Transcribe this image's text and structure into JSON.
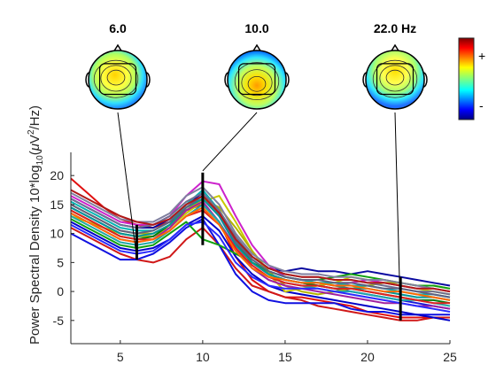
{
  "chart_data": {
    "type": "line",
    "title": "",
    "xlabel": "",
    "ylabel": {
      "prefix": "Power Spectral Density 10*log",
      "sub": "10",
      "mid": "(",
      "mu": "μ",
      "unit": "V",
      "sup": "2",
      "suffix": "/Hz)"
    },
    "xlim": [
      2,
      25
    ],
    "ylim": [
      -9,
      24
    ],
    "xticks": [
      5,
      10,
      15,
      20,
      25
    ],
    "yticks": [
      -5,
      0,
      5,
      10,
      15,
      20
    ],
    "grid": false,
    "x": [
      2,
      3,
      4,
      5,
      6,
      7,
      8,
      9,
      10,
      11,
      12,
      13,
      14,
      15,
      16,
      17,
      18,
      19,
      20,
      21,
      22,
      23,
      24,
      25
    ],
    "channels": [
      {
        "color": "#e01010",
        "values": [
          19.5,
          17,
          14.5,
          12.5,
          11.5,
          11,
          12,
          14,
          15,
          12,
          6,
          2,
          0,
          -1,
          -1,
          -1.5,
          -2,
          -2.5,
          -3.5,
          -4,
          -4.5,
          -4.5,
          -4.5,
          -4.5
        ]
      },
      {
        "color": "#d01818",
        "values": [
          11,
          9.5,
          8,
          6.5,
          5.5,
          5,
          6,
          9,
          11,
          8,
          4,
          1,
          0,
          -1,
          -1.5,
          -2.5,
          -3,
          -3.5,
          -4,
          -4.5,
          -5,
          -5,
          -4.5,
          -4.5
        ]
      },
      {
        "color": "#1010e0",
        "values": [
          10,
          8.5,
          7,
          5.5,
          5.5,
          6.5,
          8.5,
          11,
          12.5,
          8,
          3,
          0,
          -1.5,
          -2,
          -2,
          -2,
          -2,
          -3,
          -3.5,
          -3.5,
          -4,
          -4,
          -4,
          -4
        ]
      },
      {
        "color": "#0000c8",
        "values": [
          12,
          10.5,
          9,
          7.5,
          7,
          7.5,
          9,
          11.5,
          13,
          10.5,
          6,
          3,
          1,
          0,
          -0.5,
          -1,
          -1.5,
          -2,
          -2.5,
          -3,
          -3.5,
          -4,
          -4.5,
          -5
        ]
      },
      {
        "color": "#1818d8",
        "values": [
          14.5,
          13,
          11.5,
          10,
          9.5,
          9.5,
          11,
          14,
          16,
          13,
          8,
          5,
          3,
          2,
          1.5,
          1,
          0.5,
          0,
          -0.5,
          -1,
          -1.5,
          -2,
          -2.5,
          -3
        ]
      },
      {
        "color": "#0a0aa0",
        "values": [
          16,
          14.5,
          13,
          11.5,
          11,
          11,
          12.5,
          15,
          17,
          14,
          9,
          6,
          4,
          3.5,
          4,
          3.5,
          3.5,
          3,
          3.5,
          3,
          2.5,
          2,
          1.5,
          1
        ]
      },
      {
        "color": "#c8c800",
        "values": [
          13,
          12,
          11,
          10,
          9.5,
          9.5,
          11,
          13.5,
          15.5,
          16.5,
          12,
          7,
          3,
          0,
          0.5,
          1,
          1.5,
          2.5,
          2,
          1.5,
          1,
          0.5,
          0,
          -0.5
        ]
      },
      {
        "color": "#b4b400",
        "values": [
          15,
          13.5,
          12,
          10.5,
          10,
          10,
          11.5,
          14,
          16,
          14.5,
          11,
          7,
          3.5,
          1,
          0,
          -0.5,
          0,
          0.5,
          1,
          1.5,
          1.5,
          1,
          1,
          0.5
        ]
      },
      {
        "color": "#cc22cc",
        "values": [
          16.5,
          15,
          13.5,
          12,
          11.5,
          11.5,
          13,
          16.5,
          19,
          18.5,
          13,
          8,
          4.5,
          2.5,
          2,
          1.5,
          1,
          1.5,
          2,
          1.5,
          1,
          0.5,
          0.5,
          0
        ]
      },
      {
        "color": "#a020a0",
        "values": [
          13.5,
          12,
          10.5,
          9,
          8.5,
          9,
          11,
          14,
          15.5,
          12,
          7.5,
          4,
          2,
          1,
          0.5,
          0,
          -0.5,
          -1,
          -1.5,
          -2,
          -2,
          -2.5,
          -2.5,
          -3
        ]
      },
      {
        "color": "#10a010",
        "values": [
          12.5,
          11,
          9.5,
          8,
          7.5,
          8,
          10,
          12,
          9,
          8,
          6.5,
          5,
          3.5,
          2.5,
          2,
          2,
          2.5,
          3,
          2.5,
          2,
          1.5,
          1,
          1,
          0.5
        ]
      },
      {
        "color": "#0a7a0a",
        "values": [
          14,
          12.5,
          11,
          9.5,
          9,
          9.5,
          11.5,
          14.5,
          16.5,
          13.5,
          8.5,
          5,
          3,
          2,
          1.5,
          1,
          0.5,
          0.5,
          0,
          -0.5,
          -1,
          -1.5,
          -1.5,
          -2
        ]
      },
      {
        "color": "#00b4b4",
        "values": [
          15.5,
          14,
          12.5,
          11,
          10.5,
          10.5,
          12,
          15,
          17.5,
          14,
          9,
          5.5,
          3.5,
          2.5,
          2,
          1.5,
          1.5,
          1,
          1,
          0.5,
          0,
          -0.5,
          -0.5,
          -1
        ]
      },
      {
        "color": "#009696",
        "values": [
          14.5,
          13,
          11.5,
          10,
          9.5,
          10,
          11.5,
          14.5,
          16,
          13,
          8,
          5,
          3,
          2,
          1.5,
          1.5,
          1,
          0.5,
          0.5,
          0,
          -0.5,
          -1,
          -1,
          -1.5
        ]
      },
      {
        "color": "#20a8a8",
        "values": [
          13,
          11.5,
          10,
          8.5,
          8,
          8.5,
          10.5,
          13,
          15,
          12,
          7,
          4,
          2.5,
          1.5,
          1,
          0.5,
          0,
          0,
          -0.5,
          -1,
          -1.5,
          -1.5,
          -2,
          -2.5
        ]
      },
      {
        "color": "#8080a0",
        "values": [
          17,
          15.5,
          14,
          12.5,
          12,
          12,
          13.5,
          16.5,
          18,
          15,
          10,
          6.5,
          4.5,
          3.5,
          3,
          3,
          2.5,
          2.5,
          2,
          2,
          1.5,
          1,
          0.5,
          0
        ]
      },
      {
        "color": "#707090",
        "values": [
          16,
          14.5,
          13,
          11.5,
          11,
          11.5,
          13,
          15.5,
          17,
          14,
          9.5,
          6,
          4,
          3,
          2.5,
          2.5,
          2,
          2,
          1.5,
          1,
          0.5,
          0,
          0,
          -0.5
        ]
      },
      {
        "color": "#606080",
        "values": [
          15,
          13.5,
          12,
          10.5,
          10,
          10.5,
          12,
          14.5,
          16.5,
          13.5,
          8.5,
          5.5,
          3.5,
          2.5,
          2,
          2,
          1.5,
          1.5,
          1,
          0.5,
          0.5,
          0,
          -0.5,
          -1
        ]
      },
      {
        "color": "#e02020",
        "values": [
          14,
          12.5,
          11,
          9.5,
          9,
          9,
          10.5,
          13,
          14,
          11.5,
          7.5,
          4.5,
          2.5,
          1.5,
          1,
          1,
          0.5,
          0.5,
          0,
          -0.5,
          -1,
          -1.5,
          -2,
          -2
        ]
      },
      {
        "color": "#b01818",
        "values": [
          17.5,
          16,
          14.5,
          13,
          12,
          11.5,
          12.5,
          15,
          16.5,
          13.5,
          9,
          6,
          4,
          3,
          2.5,
          2.5,
          2,
          2,
          1.5,
          1.5,
          1,
          0.5,
          0.5,
          0
        ]
      },
      {
        "color": "#ff6a00",
        "values": [
          13.5,
          12,
          10.5,
          9,
          8.5,
          9,
          10.5,
          13,
          14.5,
          11.5,
          7,
          4,
          2.5,
          2,
          1.5,
          1.5,
          1,
          1,
          0.5,
          0,
          0,
          -0.5,
          -1,
          -1.5
        ]
      },
      {
        "color": "#2a2aff",
        "values": [
          11.5,
          10,
          8.5,
          7,
          6.5,
          7,
          9,
          11.5,
          12,
          9.5,
          5,
          2.5,
          1,
          0.5,
          0.5,
          0.5,
          0,
          -0.5,
          -1,
          -1.5,
          -2,
          -2.5,
          -3,
          -3.5
        ]
      }
    ],
    "topo_markers": [
      {
        "label": "6.0",
        "freq": 6,
        "range": [
          5.5,
          11.5
        ]
      },
      {
        "label": "10.0",
        "freq": 10,
        "range": [
          8.0,
          20.5
        ]
      },
      {
        "label": "22.0 Hz",
        "freq": 22,
        "range": [
          -5,
          2.5
        ]
      }
    ],
    "colorbar": {
      "plus": "+",
      "minus": "-"
    }
  }
}
